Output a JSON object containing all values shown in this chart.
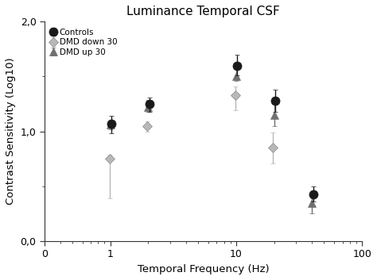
{
  "title": "Luminance Temporal CSF",
  "xlabel": "Temporal Frequency (Hz)",
  "ylabel": "Contrast Sensitivity (Log10)",
  "controls": {
    "x": [
      1,
      2,
      10,
      20,
      40
    ],
    "y": [
      1.07,
      1.25,
      1.6,
      1.28,
      0.43
    ],
    "yerr_lower": [
      0.09,
      0.07,
      0.09,
      0.1,
      0.07
    ],
    "yerr_upper": [
      0.07,
      0.06,
      0.1,
      0.1,
      0.07
    ],
    "color": "#1a1a1a",
    "marker": "o",
    "label": "Controls",
    "markersize": 8
  },
  "dmd_down": {
    "x": [
      1.0,
      2.0,
      10.0,
      20.0
    ],
    "y": [
      0.75,
      1.05,
      1.33,
      0.85
    ],
    "yerr_lower": [
      0.36,
      0.05,
      0.14,
      0.14
    ],
    "yerr_upper": [
      0.04,
      0.04,
      0.08,
      0.14
    ],
    "color": "#b8b8b8",
    "marker": "D",
    "label": "DMD down 30",
    "markersize": 6
  },
  "dmd_up": {
    "x": [
      1.0,
      2.0,
      10.0,
      20.0,
      40.0
    ],
    "y": [
      1.06,
      1.22,
      1.5,
      1.15,
      0.35
    ],
    "yerr_lower": [
      0.04,
      0.04,
      0.04,
      0.1,
      0.1
    ],
    "yerr_upper": [
      0.04,
      0.07,
      0.07,
      0.1,
      0.07
    ],
    "color": "#707070",
    "marker": "^",
    "label": "DMD up 30",
    "markersize": 7
  },
  "xlim_left": 0.3,
  "xlim_right": 100,
  "ylim_bottom": 0.0,
  "ylim_top": 2.0,
  "yticks": [
    0.0,
    1.0,
    2.0
  ],
  "ytick_labels": [
    "0,0",
    "1,0",
    "2,0"
  ],
  "xticks": [
    0.3,
    1,
    10,
    100
  ],
  "xtick_labels": [
    "0",
    "1",
    "10",
    "100"
  ],
  "background_color": "#ffffff",
  "legend_fontsize": 7.5,
  "title_fontsize": 11,
  "axis_label_fontsize": 9.5,
  "tick_fontsize": 9
}
